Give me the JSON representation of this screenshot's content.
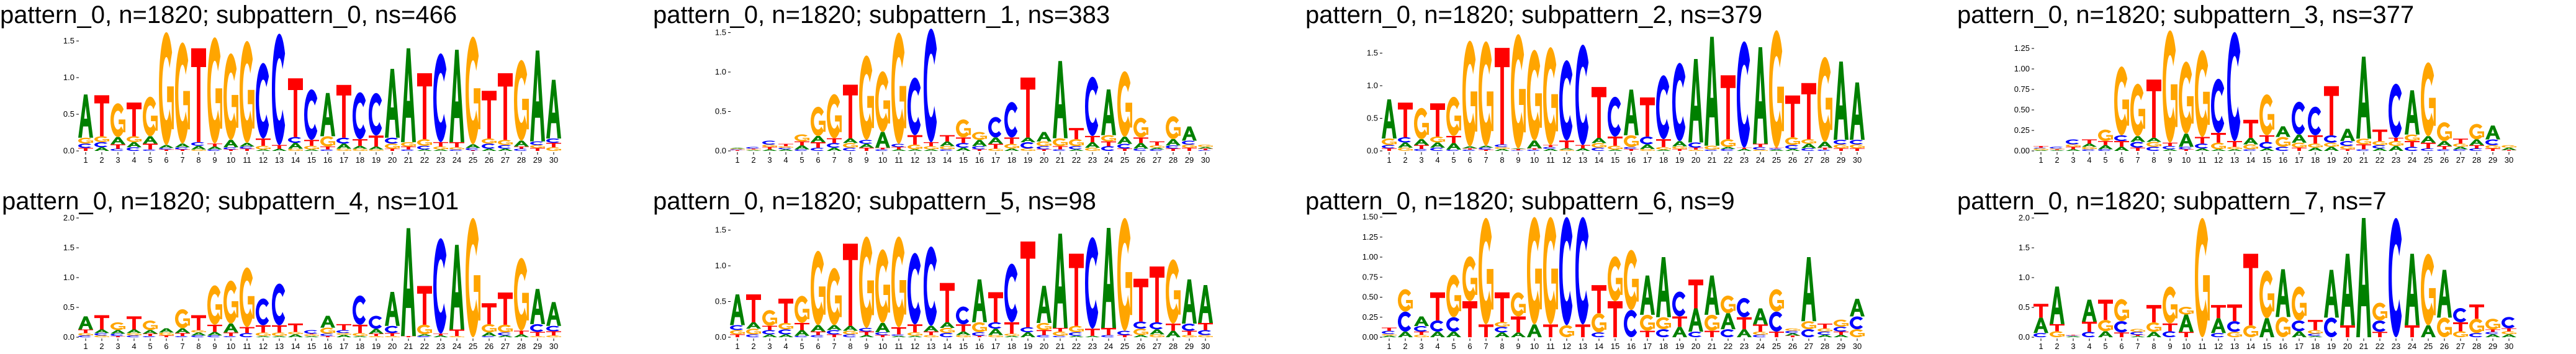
{
  "colors": {
    "A": "#008000",
    "C": "#0000ff",
    "G": "#ffa500",
    "T": "#ff0000"
  },
  "chart_data": [
    {
      "type": "sequence-logo",
      "title": "pattern_0, n=1820; subpattern_0, ns=466",
      "ylim": [
        0,
        1.65
      ],
      "yticks": [
        [
          "0.0",
          0
        ],
        [
          "0.5",
          0.5
        ],
        [
          "1.0",
          1
        ],
        [
          "1.5",
          1.5
        ]
      ],
      "positions": [
        "T:.04 C:.06 G:.08 A:.59",
        "A:.05 C:.07 G:.08 T:.56",
        "C:.03 T:.06 A:.1 G:.46",
        "C:.05 A:.07 G:.08 T:.46",
        "C:.02 T:.08 A:.1 G:.54",
        "T:.02 C:.02 A:.04 G:1.54",
        "T:.02 C:.03 A:.05 G:1.38",
        "G:.02 A:.05 C:.05 T:1.28",
        "C:.02 A:.04 T:.04 G:1.45",
        "T:.02 C:.03 A:.1 G:1.18",
        "T:.03 C:.03 A:.05 G:1.39",
        "A:.02 G:.05 T:.1 C:1.03",
        "A:.03 T:.05 C:1.52",
        "G:.03 A:.08 C:.08 T:.8",
        "A:.02 G:.05 T:.08 C:.69",
        "C:.02 T:.04 G:.14 A:.59",
        "G:.03 A:.07 C:.08 T:.72",
        "G:.03 A:.04 T:.09 C:.64",
        "G:.02 A:.04 T:.15 C:.58",
        "T:.03 G:.07 C:.08 A:.94",
        "C:.02 T:.04 G:.06 A:1.28",
        "A:.02 C:.05 G:.09 T:.9",
        "A:.02 G:.04 T:.06 C:1.21",
        "C:.02 G:.03 T:.07 A:1.26",
        "T:.01 C:.03 A:.05 G:1.47",
        "A:.03 C:.07 G:.07 T:.65",
        "A:.03 C:.05 G:.07 T:.91",
        "C:.03 T:.03 A:.08 G:1.1",
        "T:.04 G:.04 C:.05 A:1.24",
        "G:.05 T:.06 C:.06 A:.8"
      ]
    },
    {
      "type": "sequence-logo",
      "title": "pattern_0, n=1820; subpattern_1, ns=383",
      "ylim": [
        0,
        1.5
      ],
      "yticks": [
        [
          "0.0",
          0
        ],
        [
          "0.5",
          0.5
        ],
        [
          "1.0",
          1
        ],
        [
          "1.5",
          1.5
        ]
      ],
      "positions": [
        "T:.01 C:.01 G:.01 A:.01",
        "A:.01 G:.01 T:.01 C:.02",
        "A:.02 T:.03 G:.03 C:.05",
        "A:.02 C:.02 G:.02 T:.03",
        "C:.02 A:.05 T:.05 G:.09",
        "C:.04 T:.07 A:.08 G:.37",
        "A:.04 C:.06 T:.06 G:.56",
        "C:.04 G:.06 A:.06 T:.68",
        "T:.04 A:.05 C:.05 G:1.07",
        "C:.02 T:.02 A:.2 G:.77",
        "A:.02 T:.03 C:.04 G:1.41",
        "A:.02 G:.06 T:.12 C:.73",
        "A:.02 G:.04 T:.05 C:1.44",
        "C:.02 G:.04 A:.06 T:.08",
        "A:.04 C:.06 T:.07 G:.23",
        "T:.02 C:.04 A:.08 G:.1",
        "G:.03 T:.06 A:.08 C:.26",
        "A:.03 G:.06 T:.08 C:.45",
        "G:.03 C:.08 A:.06 T:.76",
        "T:.02 C:.04 G:.06 A:.12",
        "C:.02 T:.04 G:.1 A:.98",
        "A:.02 C:.04 G:.09 T:.14",
        "G:.04 A:.07 T:.08 C:.75",
        "C:.06 T:.06 G:.08 A:.58",
        "T:.03 C:.06 A:.09 G:.83",
        "C:.03 A:.07 T:.07 G:.25",
        "C:.02 A:.02 G:.03 T:.05",
        "T:.03 C:.04 A:.08 G:.29",
        "T:.04 G:.04 C:.05 A:.18",
        "C:.01 T:.02 A:.02 G:.03"
      ]
    },
    {
      "type": "sequence-logo",
      "title": "pattern_0, n=1820; subpattern_2, ns=379",
      "ylim": [
        0,
        1.85
      ],
      "yticks": [
        [
          "0.0",
          0
        ],
        [
          "0.5",
          0.5
        ],
        [
          "1.0",
          1
        ],
        [
          "1.5",
          1.5
        ]
      ],
      "positions": [
        "T:.04 C:.05 G:.1 A:.6",
        "G:.05 A:.08 C:.08 T:.53",
        "C:.03 T:.06 A:.09 G:.48",
        "C:.05 A:.08 G:.09 T:.51",
        "C:.02 A:.1 T:.11 G:.6",
        "C:.02 T:.02 A:.03 G:1.62",
        "T:.02 C:.03 A:.03 G:1.6",
        "A:.03 G:.03 C:.04 T:1.48",
        "C:.01 T:.02 A:.01 G:1.75",
        "C:.02 T:.02 A:.12 G:1.39",
        "A:.03 C:.03 T:.03 G:1.5",
        "G:.02 A:.02 T:.12 C:1.23",
        "A:.04 T:.05 C:1.54",
        "C:.05 G:.07 A:.08 T:.78",
        "A:.02 G:.06 T:.14 C:.61",
        "T:.03 C:.03 G:.18 A:.7",
        "G:.03 A:.07 C:.12 T:.6",
        "A:.02 G:.04 T:.12 C:.98",
        "T:.03 G:.04 A:.08 C:1.2",
        "G:.02 T:.03 C:.08 A:1.28",
        "C:.02 G:.06 A:1.67",
        "C:.03 A:.03 G:.12 T:.98",
        "A:.03 T:.02 C:1.63",
        "G:.02 C:.04 T:.05 A:1.48",
        "A:.02 C:.02 T:.01 G:1.8",
        "A:.03 C:.06 G:.12 T:.64",
        "C:.04 A:.07 G:.07 T:.86",
        "C:.02 T:.03 A:.09 G:1.3",
        "T:.04 G:.06 C:.07 A:1.2",
        "T:.04 G:.06 C:.07 A:.88"
      ]
    },
    {
      "type": "sequence-logo",
      "title": "pattern_0, n=1820; subpattern_3, ns=377",
      "ylim": [
        0,
        1.45
      ],
      "yticks": [
        [
          "0.00",
          0
        ],
        [
          "0.25",
          0.25
        ],
        [
          "0.50",
          0.5
        ],
        [
          "0.75",
          0.75
        ],
        [
          "1.00",
          1
        ],
        [
          "1.25",
          1.25
        ]
      ],
      "positions": [
        "A:.01 G:.02 C:.01 T:.02",
        "A:.01 T:.01 G:.01 C:.02",
        "A:.02 T:.03 G:.03 C:.06",
        "C:.02 G:.03 A:.04 T:.05",
        "C:.02 A:.05 T:.05 G:.14",
        "A:.05 T:.07 C:.07 G:.84",
        "T:.04 C:.07 A:.07 G:.64",
        "C:.05 G:.06 A:.05 T:.71",
        "A:.02 C:.04 T:.04 G:1.37",
        "T:.02 C:.03 A:.16 G:.88",
        "A:.03 C:.06 T:.08 G:1.06",
        "A:.02 G:.08 T:.12 C:.66",
        "A:.02 G:.03 T:.07 C:1.33",
        "C:.02 G:.06 A:.08 T:.22",
        "A:.03 C:.08 T:.08 G:.5",
        "C:.05 G:.12 A:.13",
        "T:.04 G:.06 A:.1 C:.4",
        "A:.04 G:.05 T:.1 C:.35",
        "A:.05 G:.05 C:.09 T:.6",
        "T:.02 G:.04 C:.06 A:.15",
        "C:.02 T:.06 G:.07 A:1.0",
        "A:.03 C:.04 G:.05 T:.14",
        "A:.06 G:.06 T:.04 C:.66",
        "C:.05 T:.07 G:.08 A:.54",
        "C:.03 T:.07 A:.08 G:.9",
        "C:.02 T:.04 A:.06 G:.23",
        "C:.02 A:.03 G:.04 T:.06",
        "C:.03 T:.04 A:.07 G:.19",
        "T:.03 G:.04 C:.07 A:.17",
        "T:.01 A:.03 G:.03"
      ]
    },
    {
      "type": "sequence-logo",
      "title": "pattern_0, n=1820; subpattern_4, ns=101",
      "ylim": [
        0,
        2.0
      ],
      "yticks": [
        [
          "0.0",
          0
        ],
        [
          "0.5",
          0.5
        ],
        [
          "1.0",
          1
        ],
        [
          "1.5",
          1.5
        ],
        [
          "2.0",
          2
        ]
      ],
      "positions": [
        "C:.03 G:.04 T:.06 A:.22",
        "G:.03 C:.04 A:.06 T:.24",
        "T:.02 C:.04 A:.06 G:.13",
        "C:.03 G:.04 A:.06 T:.22",
        "C:.02 T:.04 A:.06 G:.16",
        "T:.03 G:.05 A:.07",
        "C:.02 T:.05 A:.08 G:.32",
        "C:.03 A:.05 G:.04 T:.25",
        "C:.03 A:.06 T:.12 G:.66",
        "C:.02 T:.06 A:.15 G:.72",
        "C:.07 T:.1 G:1.0",
        "A:.02 G:.06 T:.12 C:.45",
        "A:.02 G:.06 T:.12 C:.7",
        "A:.05 G:.04 T:.14",
        "A:.02 G:.03 T:.01 C:.06",
        "T:.02 C:.04 G:.1 A:.2",
        "A:.04 G:.03 C:.05 T:.1",
        "A:.02 G:.05 T:.14 C:.49",
        "G:.02 T:.04 A:.08 C:.22",
        "G:.02 T:.05 C:.12 A:.57",
        "T:.02 A:1.81",
        "C:.02 A:.03 G:.16 T:.65",
        "A:.03 T:.03 C:1.6",
        "G:.02 T:.11 A:1.42",
        "G:2.0",
        "C:.02 A:.06 G:.14 T:.35",
        "A:.03 C:.05 G:.13 T:.54",
        "A:.05 T:.06 G:1.22",
        "G:.02 T:.07 C:.13 A:.59",
        "G:.03 T:.07 C:.09 A:.4"
      ]
    },
    {
      "type": "sequence-logo",
      "title": "pattern_0, n=1820; subpattern_5, ns=98",
      "ylim": [
        0,
        1.65
      ],
      "yticks": [
        [
          "0.0",
          0
        ],
        [
          "0.5",
          0.5
        ],
        [
          "1.0",
          1
        ],
        [
          "1.5",
          1.5
        ]
      ],
      "positions": [
        "T:.04 G:.06 C:.07 A:.43",
        "C:.04 G:.08 A:.09 T:.39",
        "A:.04 C:.06 T:.06 G:.22",
        "A:.04 C:.07 G:.09 T:.34",
        "C:.02 A:.08 T:.1 G:.38",
        "C:.03 T:.05 A:.09 G:1.04",
        "T:.04 C:.06 A:.07 G:.8",
        "C:.04 G:.05 A:.07 T:1.15",
        "A:.03 T:.05 C:.05 G:1.28",
        "T:.03 C:.04 A:.13 G:1.03",
        "A:.02 C:.02 T:.1 G:1.27",
        "A:.02 G:.05 T:.11 C:1.0",
        "G:.03 T:.05 A:.08 C:1.11",
        "C:.06 G:.07 A:.08 T:.55",
        "G:.03 A:.05 T:.1 C:.25",
        "T:.02 C:.05 G:.14 A:.6",
        "G:.03 A:.09 C:.09 T:.42",
        "A:.02 G:.03 T:.16 C:.82",
        "A:.07 C:.07 T:1.2",
        "C:.03 T:.07 G:.1 A:.52",
        "C:.02 G:.06 T:.05 A:1.32",
        "A:.02 C:.05 G:.09 T:1.01",
        "A:.02 T:.1 C:1.28",
        "C:.03 T:.1 A:1.4",
        "T:.03 C:.06 G:1.58",
        "A:.03 G:.09 C:.1 T:.6",
        "G:.04 A:.07 C:.1 T:.78",
        "A:.09 T:.1 G:.9",
        "G:.03 T:.06 C:.1 A:.62",
        "G:.03 C:.07 T:.1 A:.53"
      ]
    },
    {
      "type": "sequence-logo",
      "title": "pattern_0, n=1820; subpattern_6, ns=9",
      "ylim": [
        0,
        1.5
      ],
      "yticks": [
        [
          "0.00",
          0
        ],
        [
          "0.25",
          0.25
        ],
        [
          "0.50",
          0.5
        ],
        [
          "0.75",
          0.75
        ],
        [
          "1.00",
          1
        ],
        [
          "1.25",
          1.25
        ],
        [
          "1.50",
          1.5
        ]
      ],
      "positions": [
        "A:.02 G:.02 C:.04 T:.04",
        "A:.07 C:.25 G:.28",
        "G:.03 T:.04 C:.07 A:.12",
        "A:.07 C:.14 T:.35",
        "A:.07 C:.18 G:.53",
        "T:.45 G:.56",
        "T:.16 G:1.33",
        "A:.06 C:.07 G:.06 T:.37",
        "A:.06 T:.2 G:.3",
        "A:.16 G:1.34",
        "T:.16 G:1.34",
        "G:.15 C:1.35",
        "T:.16 C:1.34",
        "C:.06 G:.24 T:.35",
        "T:.45 G:.56",
        "C:.34 G:.75",
        "T:.08 G:.2 A:.49",
        "C:.1 G:.15 A:.75",
        "A:.13 T:.13 C:.31",
        "C:.07 A:.29 T:.36",
        "T:.08 G:.2 A:.49",
        "C:.1 A:.2 G:.22",
        "A:.1 T:.15 C:.24",
        "C:.03 G:.04 T:.09 A:.2",
        "T:.07 C:.25 G:.28",
        "T:.02 A:.03 C:.03 G:.03",
        "C:.1 G:.1 A:.8",
        "A:.03 C:.04 G:.04 T:.06",
        "A:.03 T:.04 C:.06 G:.09",
        "G:.1 C:.16 A:.22"
      ]
    },
    {
      "type": "sequence-logo",
      "title": "pattern_0, n=1820; subpattern_7, ns=7",
      "ylim": [
        0,
        2.0
      ],
      "yticks": [
        [
          "0.0",
          0
        ],
        [
          "0.5",
          0.5
        ],
        [
          "1.0",
          1
        ],
        [
          "1.5",
          1.5
        ],
        [
          "2.0",
          2
        ]
      ],
      "positions": [
        "C:.07 A:.26 T:.23",
        "G:.1 T:.12 A:.63",
        "A:.02 C:.01 T:.01",
        "C:.09 T:.17 A:.37",
        "A:.1 G:.19 T:.34",
        "T:.08 C:.19 G:.37",
        "A:.02 T:.02 C:.05 G:.05",
        "A:.09 G:.16 T:.29",
        "C:.1 T:.13 G:.62",
        "T:.09 A:.29 G:.13",
        "G:2.0",
        "C:.07 A:.25 T:.22",
        "G:.09 C:.18 T:.28",
        "G:.2 T:1.2",
        "A:.32 G:.8",
        "G:.34 A:.8",
        "A:.1 C:.18 G:.57",
        "A:.02 C:.04 G:.06 T:.17",
        "C:.33 A:.8",
        "T:.2 A:1.2",
        "A:2.0",
        "T:.09 C:.19 G:.3",
        "C:2.0",
        "T:.2 A:1.2",
        "A:.2 G:1.2",
        "G:.33 A:.8",
        "G:.1 T:.15 C:.24",
        "C:.07 G:.24 T:.24",
        "A:.05 C:.04 T:.04 G:.18",
        "A:.05 G:.05 T:.05 C:.19"
      ]
    }
  ]
}
